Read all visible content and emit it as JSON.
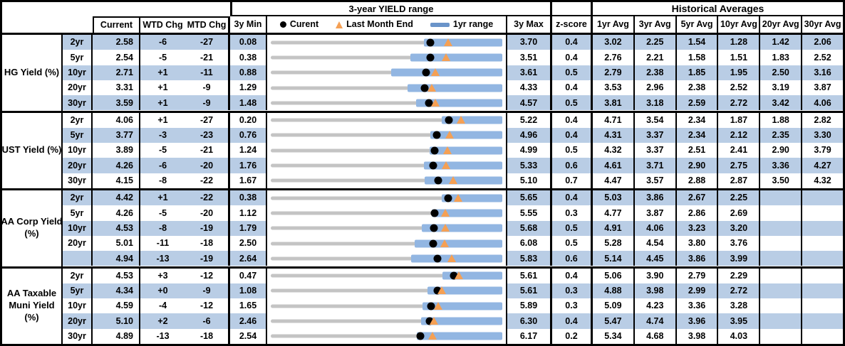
{
  "header": {
    "range_title": "3-year YIELD range",
    "historical_title": "Historical Averages",
    "columns": {
      "current": "Current",
      "wtd": "WTD Chg",
      "mtd": "MTD Chg",
      "min": "3y Min",
      "max": "3y Max",
      "zscore": "z-score"
    },
    "avg_columns": [
      "1yr Avg",
      "3yr Avg",
      "5yr Avg",
      "10yr Avg",
      "20yr Avg",
      "30yr Avg"
    ],
    "legend": {
      "current": "Curent",
      "last_month": "Last Month End",
      "range": "1yr range"
    }
  },
  "colors": {
    "stripe": "#B9CDE5",
    "bar": "#92B6E2",
    "dash": "#6A94C9",
    "orange": "#F5A054",
    "gray": "#C4C4C4",
    "border": "#000000"
  },
  "chart_data": {
    "type": "table",
    "title": "3-year YIELD range",
    "subtype": "row range (bullet) charts, each scaled from 3y Min to 3y Max; blue bar = 1yr range, black dot = current, orange triangle = last month end",
    "legend": [
      "Curent",
      "Last Month End",
      "1yr range"
    ],
    "columns": [
      "Current",
      "WTD Chg",
      "MTD Chg",
      "3y Min",
      "3-year YIELD range",
      "3y Max",
      "z-score",
      "1yr Avg",
      "3yr Avg",
      "5yr Avg",
      "10yr Avg",
      "20yr Avg",
      "30yr Avg"
    ],
    "groups": [
      {
        "label": "HG Yield (%)",
        "label_lines": [
          "HG Yield (%)"
        ],
        "rows": [
          {
            "tenor": "2yr",
            "cur": "2.58",
            "wtd": "-6",
            "mtd": "-27",
            "min": "0.08",
            "max": "3.70",
            "z": "0.4",
            "avg": [
              "3.02",
              "2.25",
              "1.54",
              "1.28",
              "1.42",
              "2.06"
            ],
            "lme": 2.85,
            "bar_lo": 2.47
          },
          {
            "tenor": "5yr",
            "cur": "2.54",
            "wtd": "-5",
            "mtd": "-21",
            "min": "0.38",
            "max": "3.51",
            "z": "0.4",
            "avg": [
              "2.76",
              "2.21",
              "1.58",
              "1.51",
              "1.83",
              "2.52"
            ],
            "lme": 2.75,
            "bar_lo": 2.27
          },
          {
            "tenor": "10yr",
            "cur": "2.71",
            "wtd": "+1",
            "mtd": "-11",
            "min": "0.88",
            "max": "3.61",
            "z": "0.5",
            "avg": [
              "2.79",
              "2.38",
              "1.85",
              "1.95",
              "2.50",
              "3.16"
            ],
            "lme": 2.82,
            "bar_lo": 2.3
          },
          {
            "tenor": "20yr",
            "cur": "3.31",
            "wtd": "+1",
            "mtd": "-9",
            "min": "1.29",
            "max": "4.33",
            "z": "0.4",
            "avg": [
              "3.53",
              "2.96",
              "2.38",
              "2.52",
              "3.19",
              "3.87"
            ],
            "lme": 3.4,
            "bar_lo": 3.09
          },
          {
            "tenor": "30yr",
            "cur": "3.59",
            "wtd": "+1",
            "mtd": "-9",
            "min": "1.48",
            "max": "4.57",
            "z": "0.5",
            "avg": [
              "3.81",
              "3.18",
              "2.59",
              "2.72",
              "3.42",
              "4.06"
            ],
            "lme": 3.68,
            "bar_lo": 3.42
          }
        ]
      },
      {
        "label": "UST Yield (%)",
        "label_lines": [
          "UST Yield (%)"
        ],
        "rows": [
          {
            "tenor": "2yr",
            "cur": "4.06",
            "wtd": "+1",
            "mtd": "-27",
            "min": "0.20",
            "max": "5.22",
            "z": "0.4",
            "avg": [
              "4.71",
              "3.54",
              "2.34",
              "1.87",
              "1.88",
              "2.82"
            ],
            "lme": 4.33,
            "bar_lo": 3.9
          },
          {
            "tenor": "5yr",
            "cur": "3.77",
            "wtd": "-3",
            "mtd": "-23",
            "min": "0.76",
            "max": "4.96",
            "z": "0.4",
            "avg": [
              "4.31",
              "3.37",
              "2.34",
              "2.12",
              "2.35",
              "3.30"
            ],
            "lme": 4.0,
            "bar_lo": 3.65
          },
          {
            "tenor": "10yr",
            "cur": "3.89",
            "wtd": "-5",
            "mtd": "-21",
            "min": "1.24",
            "max": "4.99",
            "z": "0.5",
            "avg": [
              "4.32",
              "3.37",
              "2.51",
              "2.41",
              "2.90",
              "3.79"
            ],
            "lme": 4.1,
            "bar_lo": 3.81
          },
          {
            "tenor": "20yr",
            "cur": "4.26",
            "wtd": "-6",
            "mtd": "-20",
            "min": "1.76",
            "max": "5.33",
            "z": "0.6",
            "avg": [
              "4.61",
              "3.71",
              "2.90",
              "2.75",
              "3.36",
              "4.27"
            ],
            "lme": 4.46,
            "bar_lo": 4.12
          },
          {
            "tenor": "30yr",
            "cur": "4.15",
            "wtd": "-8",
            "mtd": "-22",
            "min": "1.67",
            "max": "5.10",
            "z": "0.7",
            "avg": [
              "4.47",
              "3.57",
              "2.88",
              "2.87",
              "3.50",
              "4.32"
            ],
            "lme": 4.37,
            "bar_lo": 3.95
          }
        ]
      },
      {
        "label": "AA Corp Yield (%)",
        "label_lines": [
          "AA Corp Yield",
          "(%)"
        ],
        "rows": [
          {
            "tenor": "2yr",
            "cur": "4.42",
            "wtd": "+1",
            "mtd": "-22",
            "min": "0.38",
            "max": "5.65",
            "z": "0.4",
            "avg": [
              "5.03",
              "3.86",
              "2.67",
              "2.25",
              "",
              ""
            ],
            "lme": 4.64,
            "bar_lo": 4.27
          },
          {
            "tenor": "5yr",
            "cur": "4.26",
            "wtd": "-5",
            "mtd": "-20",
            "min": "1.12",
            "max": "5.55",
            "z": "0.3",
            "avg": [
              "4.77",
              "3.87",
              "2.86",
              "2.69",
              "",
              ""
            ],
            "lme": 4.46,
            "bar_lo": 4.2
          },
          {
            "tenor": "10yr",
            "cur": "4.53",
            "wtd": "-8",
            "mtd": "-19",
            "min": "1.79",
            "max": "5.68",
            "z": "0.5",
            "avg": [
              "4.91",
              "4.06",
              "3.23",
              "3.20",
              "",
              ""
            ],
            "lme": 4.72,
            "bar_lo": 4.33
          },
          {
            "tenor": "20yr",
            "cur": "5.01",
            "wtd": "-11",
            "mtd": "-18",
            "min": "2.50",
            "max": "6.08",
            "z": "0.5",
            "avg": [
              "5.28",
              "4.54",
              "3.80",
              "3.76",
              "",
              ""
            ],
            "lme": 5.19,
            "bar_lo": 4.72
          },
          {
            "tenor": "",
            "cur": "4.94",
            "wtd": "-13",
            "mtd": "-19",
            "min": "2.64",
            "max": "5.83",
            "z": "0.6",
            "avg": [
              "5.14",
              "4.45",
              "3.86",
              "3.99",
              "",
              ""
            ],
            "lme": 5.13,
            "bar_lo": 4.57
          }
        ]
      },
      {
        "label": "AA Taxable Muni Yield (%)",
        "label_lines": [
          "AA Taxable",
          "Muni Yield",
          "(%)"
        ],
        "rows": [
          {
            "tenor": "2yr",
            "cur": "4.53",
            "wtd": "+3",
            "mtd": "-12",
            "min": "0.47",
            "max": "5.61",
            "z": "0.4",
            "avg": [
              "5.06",
              "3.90",
              "2.79",
              "2.29",
              "",
              ""
            ],
            "lme": 4.65,
            "bar_lo": 4.28
          },
          {
            "tenor": "5yr",
            "cur": "4.34",
            "wtd": "+0",
            "mtd": "-9",
            "min": "1.08",
            "max": "5.61",
            "z": "0.3",
            "avg": [
              "4.88",
              "3.98",
              "2.99",
              "2.72",
              "",
              ""
            ],
            "lme": 4.43,
            "bar_lo": 4.14
          },
          {
            "tenor": "10yr",
            "cur": "4.59",
            "wtd": "-4",
            "mtd": "-12",
            "min": "1.65",
            "max": "5.89",
            "z": "0.3",
            "avg": [
              "5.09",
              "4.23",
              "3.36",
              "3.28",
              "",
              ""
            ],
            "lme": 4.71,
            "bar_lo": 4.43
          },
          {
            "tenor": "20yr",
            "cur": "5.10",
            "wtd": "+2",
            "mtd": "-6",
            "min": "2.46",
            "max": "6.30",
            "z": "0.4",
            "avg": [
              "5.47",
              "4.74",
              "3.96",
              "3.95",
              "",
              ""
            ],
            "lme": 5.16,
            "bar_lo": 4.95
          },
          {
            "tenor": "30yr",
            "cur": "4.89",
            "wtd": "-13",
            "mtd": "-18",
            "min": "2.54",
            "max": "6.17",
            "z": "0.2",
            "avg": [
              "5.34",
              "4.68",
              "3.98",
              "4.03",
              "",
              ""
            ],
            "lme": 5.07,
            "bar_lo": 4.83
          }
        ]
      }
    ]
  }
}
